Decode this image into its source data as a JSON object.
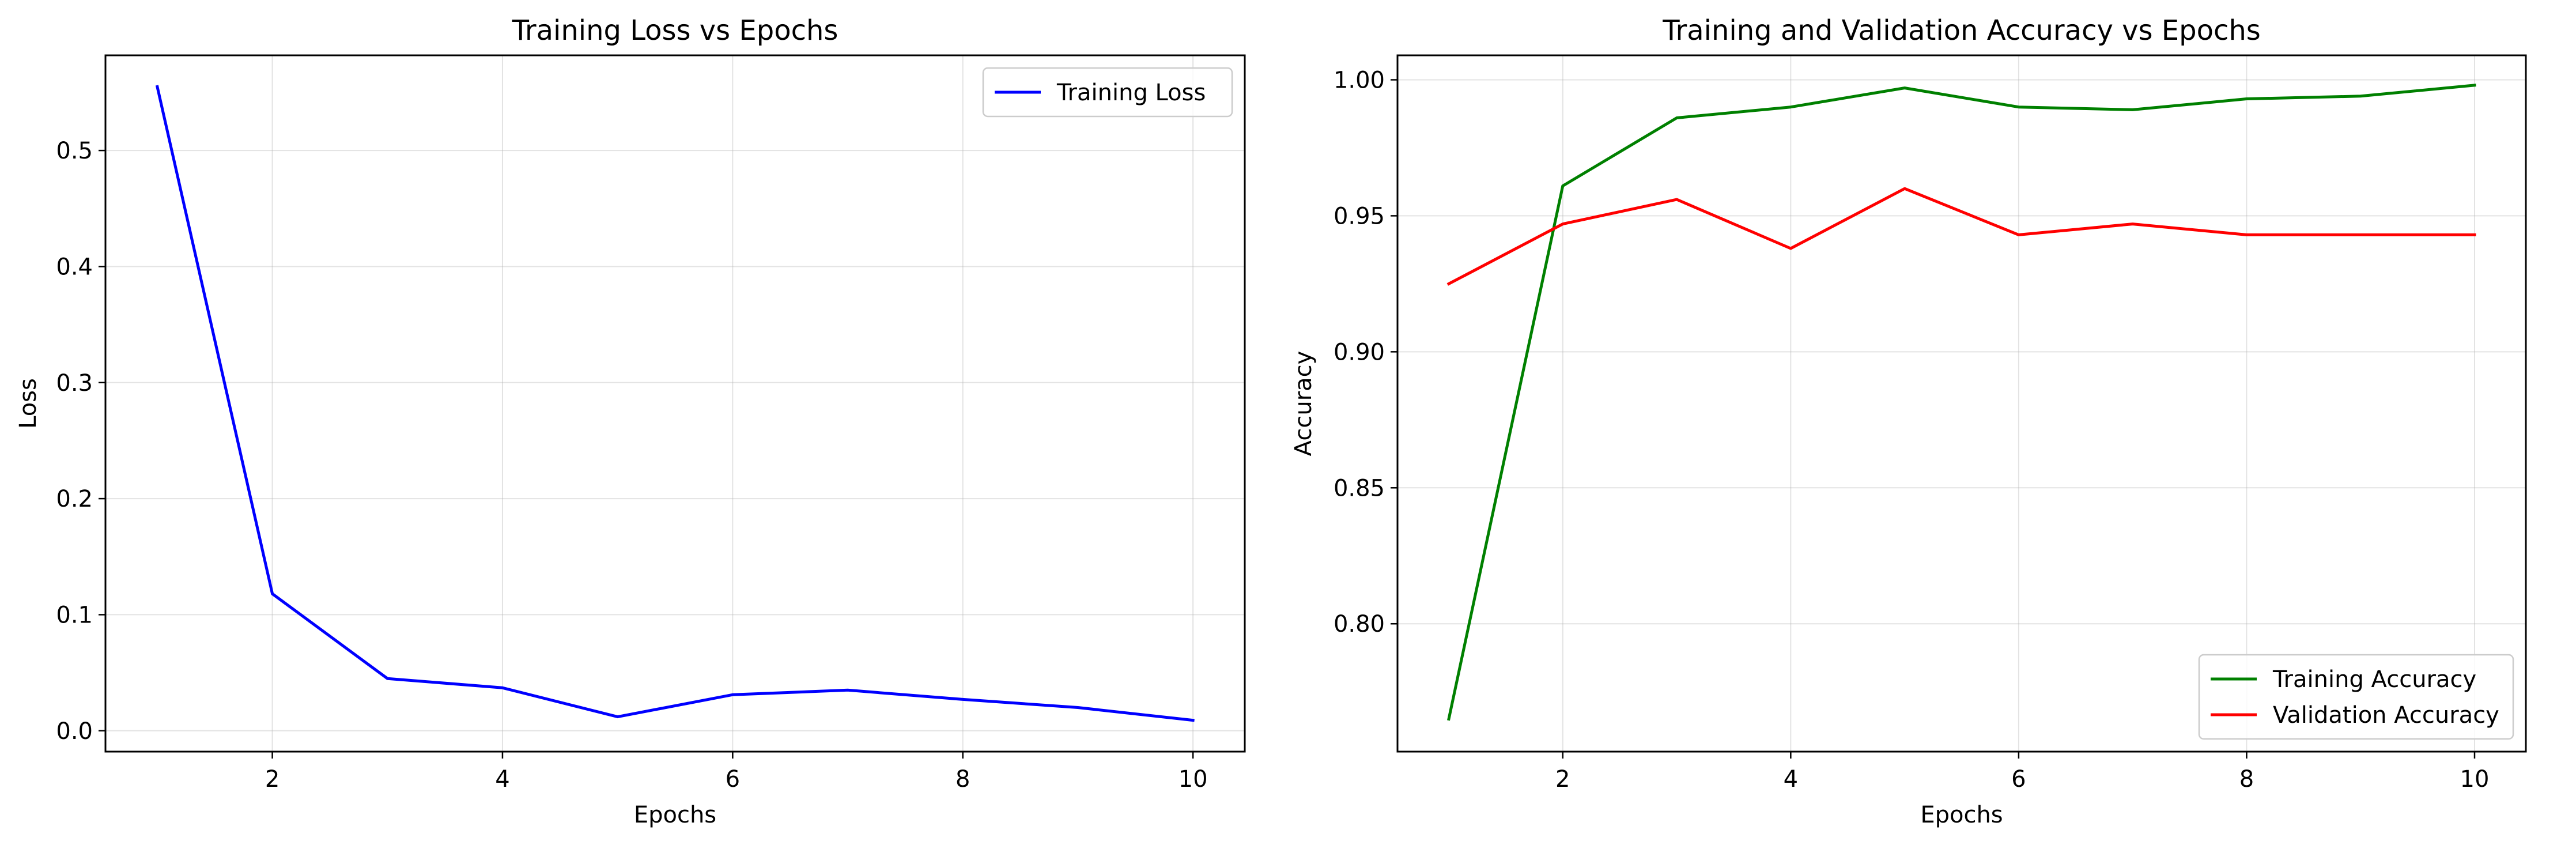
{
  "chart_data": [
    {
      "type": "line",
      "title": "Training Loss vs Epochs",
      "xlabel": "Epochs",
      "ylabel": "Loss",
      "xlim": [
        0.55,
        10.45
      ],
      "ylim": [
        -0.018,
        0.582
      ],
      "xticks": [
        2,
        4,
        6,
        8,
        10
      ],
      "yticks": [
        0.0,
        0.1,
        0.2,
        0.3,
        0.4,
        0.5
      ],
      "ytick_labels": [
        "0.0",
        "0.1",
        "0.2",
        "0.3",
        "0.4",
        "0.5"
      ],
      "grid": true,
      "legend": "upper right",
      "x": [
        1,
        2,
        3,
        4,
        5,
        6,
        7,
        8,
        9,
        10
      ],
      "series": [
        {
          "name": "Training Loss",
          "color": "#0000ff",
          "values": [
            0.555,
            0.118,
            0.045,
            0.037,
            0.012,
            0.031,
            0.035,
            0.027,
            0.02,
            0.009
          ]
        }
      ]
    },
    {
      "type": "line",
      "title": "Training and Validation Accuracy vs Epochs",
      "xlabel": "Epochs",
      "ylabel": "Accuracy",
      "xlim": [
        0.55,
        10.45
      ],
      "ylim": [
        0.753,
        1.009
      ],
      "xticks": [
        2,
        4,
        6,
        8,
        10
      ],
      "yticks": [
        0.8,
        0.85,
        0.9,
        0.95,
        1.0
      ],
      "ytick_labels": [
        "0.80",
        "0.85",
        "0.90",
        "0.95",
        "1.00"
      ],
      "grid": true,
      "legend": "lower right",
      "x": [
        1,
        2,
        3,
        4,
        5,
        6,
        7,
        8,
        9,
        10
      ],
      "series": [
        {
          "name": "Training Accuracy",
          "color": "#008000",
          "values": [
            0.765,
            0.961,
            0.986,
            0.99,
            0.997,
            0.99,
            0.989,
            0.993,
            0.994,
            0.998
          ]
        },
        {
          "name": "Validation Accuracy",
          "color": "#ff0000",
          "values": [
            0.925,
            0.947,
            0.956,
            0.938,
            0.96,
            0.943,
            0.947,
            0.943,
            0.943,
            0.943
          ]
        }
      ]
    }
  ]
}
